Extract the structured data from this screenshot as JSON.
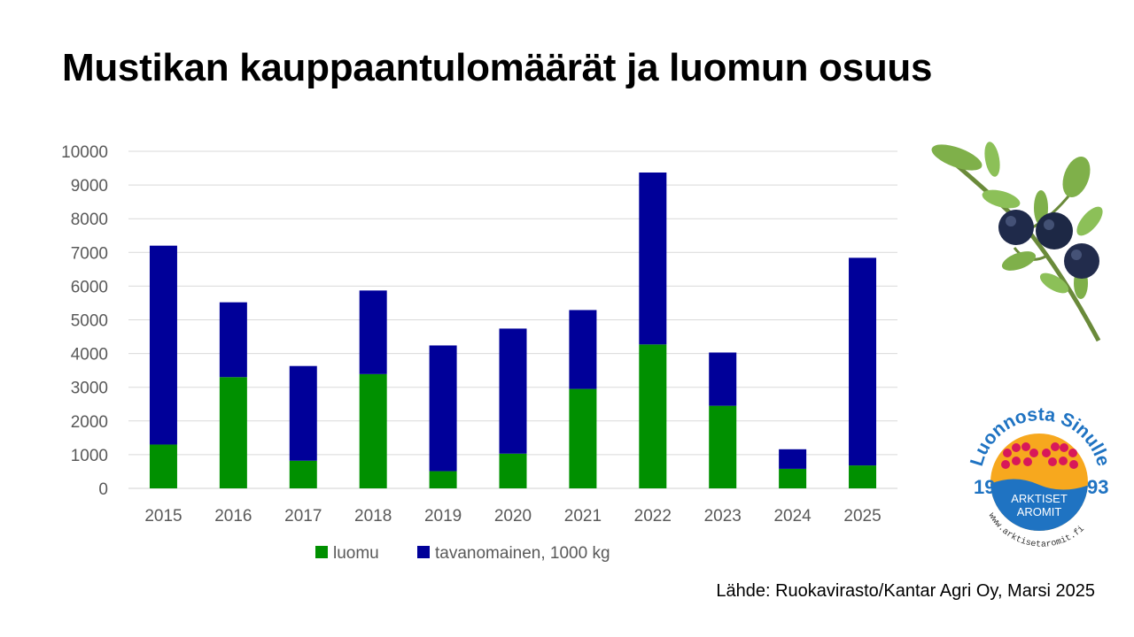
{
  "title": "Mustikan kauppaantulomäärät ja luomun osuus",
  "source": "Lähde: Ruokavirasto/Kantar Agri Oy, Marsi 2025",
  "logo": {
    "arc_text": "Luonnosta Sinulle",
    "year_left": "19",
    "year_right": "93",
    "name_line1": "ARKTISET",
    "name_line2": "AROMIT",
    "url": "www.arktisetaromit.fi"
  },
  "chart_data": {
    "type": "bar",
    "stacked": true,
    "categories": [
      "2015",
      "2016",
      "2017",
      "2018",
      "2019",
      "2020",
      "2021",
      "2022",
      "2023",
      "2024",
      "2025"
    ],
    "series": [
      {
        "name": "luomu",
        "color": "#009000",
        "values": [
          1300,
          3300,
          820,
          3390,
          510,
          1030,
          2950,
          4270,
          2450,
          580,
          680
        ]
      },
      {
        "name": "tavanomainen, 1000 kg",
        "color": "#000099",
        "values": [
          5900,
          2220,
          2810,
          2480,
          3730,
          3710,
          2340,
          5100,
          1580,
          580,
          6160
        ]
      }
    ],
    "ylim": [
      0,
      10000
    ],
    "yticks": [
      "0",
      "1000",
      "2000",
      "3000",
      "4000",
      "5000",
      "6000",
      "7000",
      "8000",
      "9000",
      "10000"
    ],
    "grid": true,
    "legend": "bottom",
    "xlabel": "",
    "ylabel": ""
  }
}
